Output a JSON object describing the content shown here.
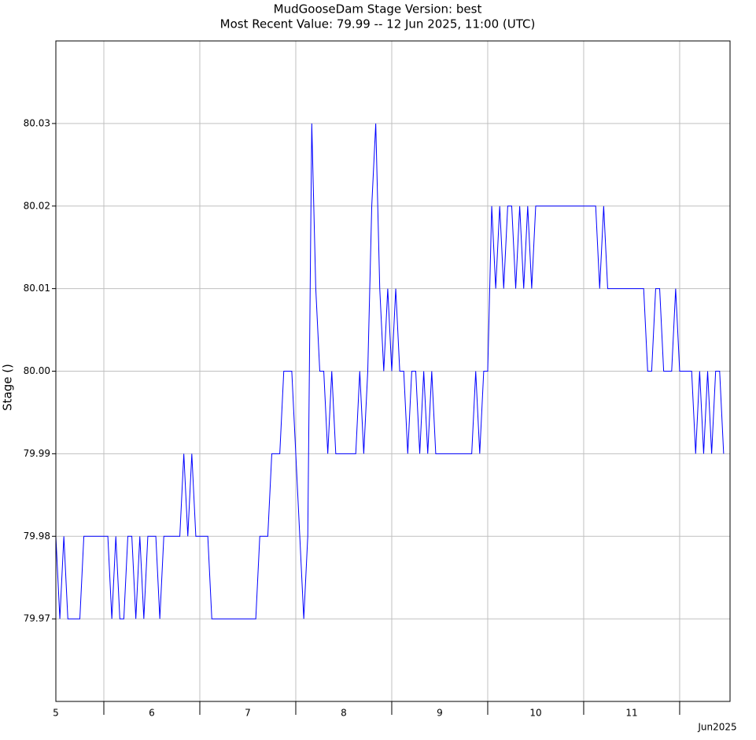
{
  "chart_data": {
    "type": "line",
    "title": "MudGooseDam  Stage  Version: best",
    "subtitle": "Most Recent Value: 79.99  --  12 Jun 2025, 11:00 (UTC)",
    "ylabel": "Stage ()",
    "xlabel": "Jun2025",
    "color": "#0000ff",
    "grid": true,
    "xlim": [
      12,
      180.6
    ],
    "ylim": [
      79.96,
      80.04
    ],
    "yticks": [
      {
        "value": 79.97,
        "label": "79.97"
      },
      {
        "value": 79.98,
        "label": "79.98"
      },
      {
        "value": 79.99,
        "label": "79.99"
      },
      {
        "value": 80.0,
        "label": "80.00"
      },
      {
        "value": 80.01,
        "label": "80.01"
      },
      {
        "value": 80.02,
        "label": "80.02"
      },
      {
        "value": 80.03,
        "label": "80.03"
      }
    ],
    "xticks": [
      {
        "value": 12,
        "label": "5"
      },
      {
        "value": 36,
        "label": "6"
      },
      {
        "value": 60,
        "label": "7"
      },
      {
        "value": 84,
        "label": "8"
      },
      {
        "value": 108,
        "label": "9"
      },
      {
        "value": 132,
        "label": "10"
      },
      {
        "value": 156,
        "label": "11"
      }
    ],
    "xgrid": [
      24,
      48,
      72,
      96,
      120,
      144,
      168
    ],
    "x": [
      12,
      13,
      14,
      15,
      16,
      17,
      18,
      19,
      20,
      21,
      22,
      23,
      24,
      25,
      26,
      27,
      28,
      29,
      30,
      31,
      32,
      33,
      34,
      35,
      36,
      37,
      38,
      39,
      40,
      41,
      42,
      43,
      44,
      45,
      46,
      47,
      48,
      49,
      50,
      51,
      52,
      53,
      54,
      55,
      56,
      57,
      58,
      59,
      60,
      61,
      62,
      63,
      64,
      65,
      66,
      67,
      68,
      69,
      70,
      71,
      72,
      73,
      74,
      75,
      76,
      77,
      78,
      79,
      80,
      81,
      82,
      83,
      84,
      85,
      86,
      87,
      88,
      89,
      90,
      91,
      92,
      93,
      94,
      95,
      96,
      97,
      98,
      99,
      100,
      101,
      102,
      103,
      104,
      105,
      106,
      107,
      108,
      109,
      110,
      111,
      112,
      113,
      114,
      115,
      116,
      117,
      118,
      119,
      120,
      121,
      122,
      123,
      124,
      125,
      126,
      127,
      128,
      129,
      130,
      131,
      132,
      133,
      134,
      135,
      136,
      137,
      138,
      139,
      140,
      141,
      142,
      143,
      144,
      145,
      146,
      147,
      148,
      149,
      150,
      151,
      152,
      153,
      154,
      155,
      156,
      157,
      158,
      159,
      160,
      161,
      162,
      163,
      164,
      165,
      166,
      167,
      168,
      169,
      170,
      171,
      172,
      173,
      174,
      175,
      176,
      177,
      178,
      179
    ],
    "values": [
      79.98,
      79.97,
      79.98,
      79.97,
      79.97,
      79.97,
      79.97,
      79.98,
      79.98,
      79.98,
      79.98,
      79.98,
      79.98,
      79.98,
      79.97,
      79.98,
      79.97,
      79.97,
      79.98,
      79.98,
      79.97,
      79.98,
      79.97,
      79.98,
      79.98,
      79.98,
      79.97,
      79.98,
      79.98,
      79.98,
      79.98,
      79.98,
      79.99,
      79.98,
      79.99,
      79.98,
      79.98,
      79.98,
      79.98,
      79.97,
      79.97,
      79.97,
      79.97,
      79.97,
      79.97,
      79.97,
      79.97,
      79.97,
      79.97,
      79.97,
      79.97,
      79.98,
      79.98,
      79.98,
      79.99,
      79.99,
      79.99,
      80.0,
      80.0,
      80.0,
      79.99,
      79.98,
      79.97,
      79.98,
      80.03,
      80.01,
      80.0,
      80.0,
      79.99,
      80.0,
      79.99,
      79.99,
      79.99,
      79.99,
      79.99,
      79.99,
      80.0,
      79.99,
      80.0,
      80.02,
      80.03,
      80.01,
      80.0,
      80.01,
      80.0,
      80.01,
      80.0,
      80.0,
      79.99,
      80.0,
      80.0,
      79.99,
      80.0,
      79.99,
      80.0,
      79.99,
      79.99,
      79.99,
      79.99,
      79.99,
      79.99,
      79.99,
      79.99,
      79.99,
      79.99,
      80.0,
      79.99,
      80.0,
      80.0,
      80.02,
      80.01,
      80.02,
      80.01,
      80.02,
      80.02,
      80.01,
      80.02,
      80.01,
      80.02,
      80.01,
      80.02,
      80.02,
      80.02,
      80.02,
      80.02,
      80.02,
      80.02,
      80.02,
      80.02,
      80.02,
      80.02,
      80.02,
      80.02,
      80.02,
      80.02,
      80.02,
      80.01,
      80.02,
      80.01,
      80.01,
      80.01,
      80.01,
      80.01,
      80.01,
      80.01,
      80.01,
      80.01,
      80.01,
      80.0,
      80.0,
      80.01,
      80.01,
      80.0,
      80.0,
      80.0,
      80.01,
      80.0,
      80.0,
      80.0,
      80.0,
      79.99,
      80.0,
      79.99,
      80.0,
      79.99,
      80.0,
      80.0,
      79.99
    ]
  }
}
